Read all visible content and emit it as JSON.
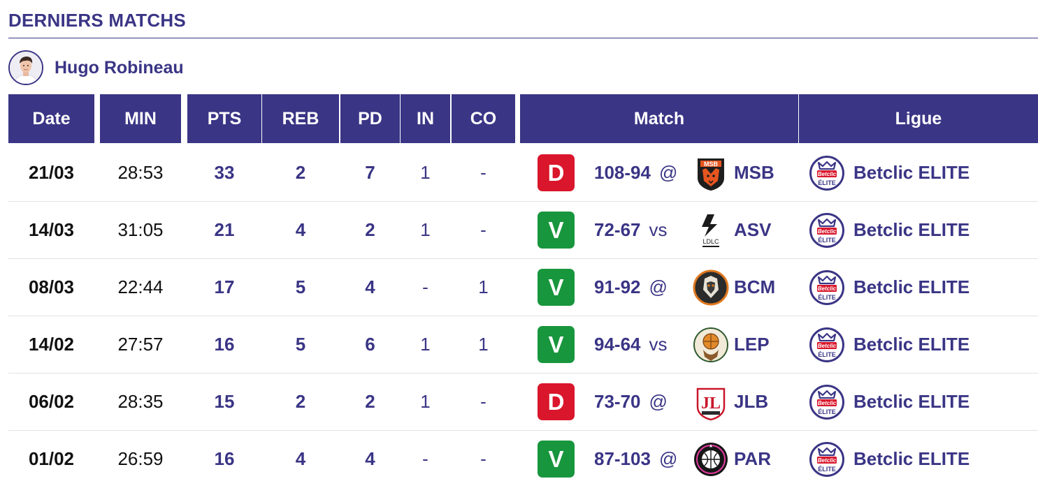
{
  "section": {
    "title": "DERNIERS MATCHS"
  },
  "player": {
    "name": "Hugo Robineau"
  },
  "columns": {
    "date": "Date",
    "min": "MIN",
    "pts": "PTS",
    "reb": "REB",
    "pd": "PD",
    "in": "IN",
    "co": "CO",
    "match": "Match",
    "ligue": "Ligue"
  },
  "colors": {
    "brand": "#3a3585",
    "loss": "#d9162b",
    "win": "#18963d"
  },
  "matches": [
    {
      "date": "21/03",
      "min": "28:53",
      "pts": "33",
      "reb": "2",
      "pd": "7",
      "in": "1",
      "co": "-",
      "result": "D",
      "score": "108-94",
      "venue": "@",
      "team": "MSB",
      "team_logo": "msb-logo",
      "league": "Betclic ELITE"
    },
    {
      "date": "14/03",
      "min": "31:05",
      "pts": "21",
      "reb": "4",
      "pd": "2",
      "in": "1",
      "co": "-",
      "result": "V",
      "score": "72-67",
      "venue": "vs",
      "team": "ASV",
      "team_logo": "asvel-logo",
      "team_logo_text": "LDLC",
      "league": "Betclic ELITE"
    },
    {
      "date": "08/03",
      "min": "22:44",
      "pts": "17",
      "reb": "5",
      "pd": "4",
      "in": "-",
      "co": "1",
      "result": "V",
      "score": "91-92",
      "venue": "@",
      "team": "BCM",
      "team_logo": "bcm-logo",
      "league": "Betclic ELITE"
    },
    {
      "date": "14/02",
      "min": "27:57",
      "pts": "16",
      "reb": "5",
      "pd": "6",
      "in": "1",
      "co": "1",
      "result": "V",
      "score": "94-64",
      "venue": "vs",
      "team": "LEP",
      "team_logo": "lep-logo",
      "league": "Betclic ELITE"
    },
    {
      "date": "06/02",
      "min": "28:35",
      "pts": "15",
      "reb": "2",
      "pd": "2",
      "in": "1",
      "co": "-",
      "result": "D",
      "score": "73-70",
      "venue": "@",
      "team": "JLB",
      "team_logo": "jlb-logo",
      "league": "Betclic ELITE"
    },
    {
      "date": "01/02",
      "min": "26:59",
      "pts": "16",
      "reb": "4",
      "pd": "4",
      "in": "-",
      "co": "-",
      "result": "V",
      "score": "87-103",
      "venue": "@",
      "team": "PAR",
      "team_logo": "par-logo",
      "league": "Betclic ELITE"
    }
  ],
  "league_logo": {
    "icon": "betclic-elite-logo",
    "top": "Betclic",
    "bottom": "ÉLITE"
  }
}
